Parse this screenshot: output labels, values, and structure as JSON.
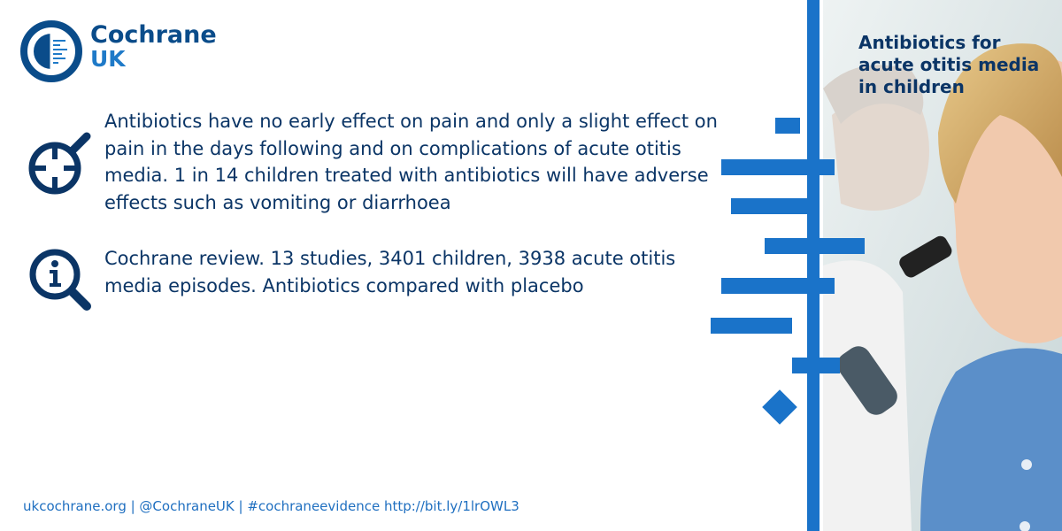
{
  "brand": {
    "name": "Cochrane",
    "region": "UK",
    "accent_color": "#1a73c9",
    "dark_color": "#0b3566"
  },
  "findings": [
    {
      "icon": "magnifier-target-icon",
      "text": "Antibiotics have no early effect on pain and only a slight effect on pain in the days following and on complications of acute otitis media. 1 in 14 children treated with antibiotics will have adverse effects such as vomiting or diarrhoea"
    },
    {
      "icon": "magnifier-info-icon",
      "text": "Cochrane review. 13 studies, 3401 children, 3938 acute otitis media episodes. Antibiotics compared with placebo"
    }
  ],
  "footer": {
    "text": "ukcochrane.org | @CochraneUK | #cochraneevidence http://bit.ly/1lrOWL3"
  },
  "panel": {
    "title": "Antibiotics for acute otitis media in children",
    "image": "doctor-examining-child-ear-photo"
  }
}
